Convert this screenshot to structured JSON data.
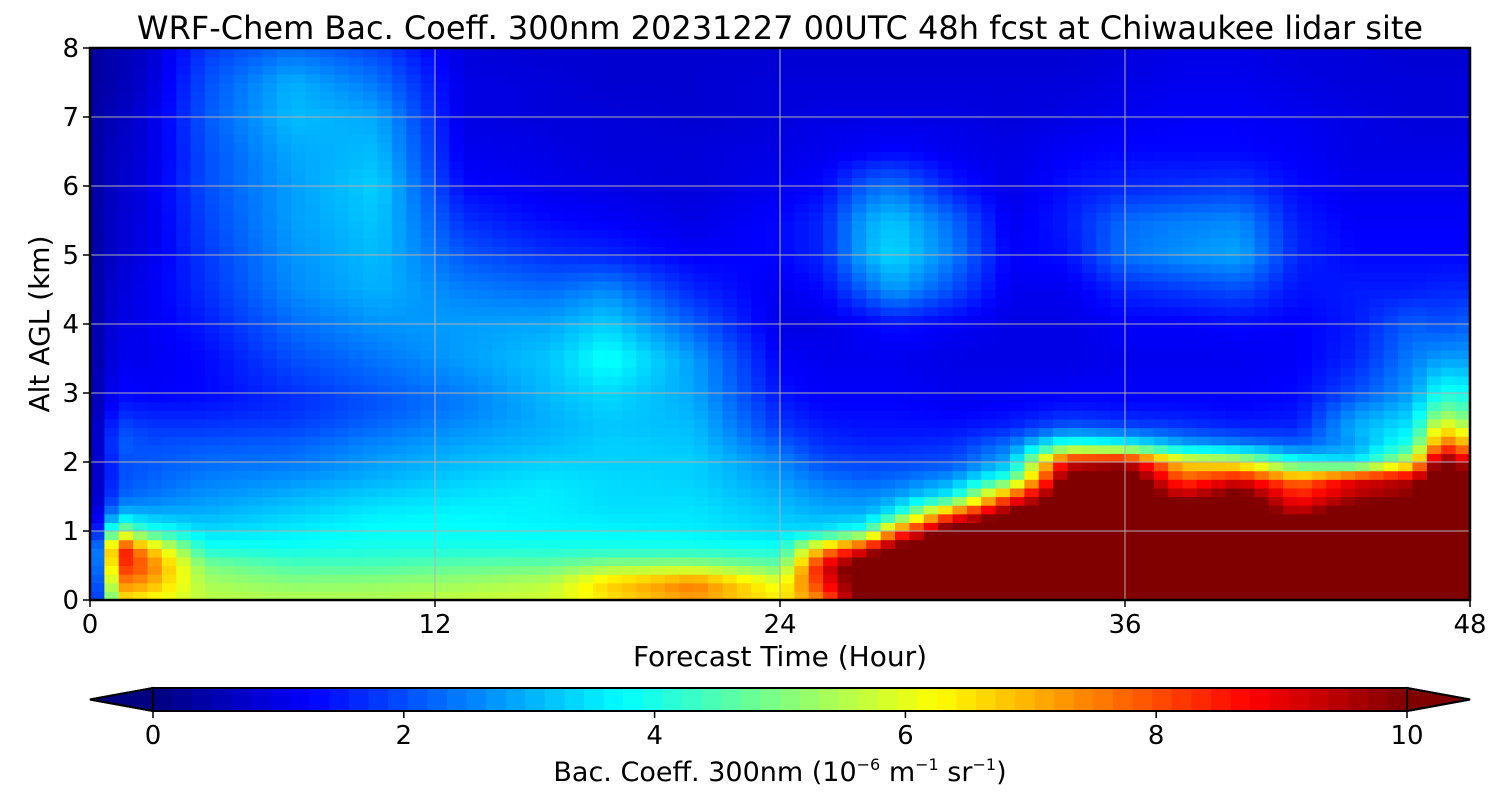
{
  "chart_data": {
    "type": "heatmap",
    "title": "WRF-Chem Bac. Coeff. 300nm  20231227 00UTC 48h fcst at Chiwaukee lidar site",
    "xlabel": "Forecast Time (Hour)",
    "ylabel": "Alt AGL (km)",
    "xlim": [
      0,
      48
    ],
    "ylim": [
      0,
      8
    ],
    "xticks": [
      0,
      12,
      24,
      36,
      48
    ],
    "yticks": [
      0,
      1,
      2,
      3,
      4,
      5,
      6,
      7,
      8
    ],
    "grid": true,
    "colormap": "jet",
    "colorbar": {
      "orientation": "horizontal",
      "label_prefix": "Bac. Coeff. 300nm  (10",
      "label_exp1": "−6",
      "label_mid1": " m",
      "label_exp2": "−1",
      "label_mid2": " sr",
      "label_exp3": "−1",
      "label_suffix": ")",
      "range": [
        0,
        10
      ],
      "ticks": [
        0,
        2,
        4,
        6,
        8,
        10
      ],
      "extend": "both"
    },
    "altitudes_km": [
      0,
      0.25,
      0.5,
      0.75,
      1,
      1.25,
      1.5,
      1.75,
      2,
      2.25,
      2.5,
      2.75,
      3,
      3.5,
      4,
      4.5,
      5,
      5.5,
      6,
      6.5,
      7,
      7.5,
      8
    ],
    "profiles": [
      {
        "hour": 0,
        "values": [
          0.3,
          0.3,
          0.3,
          0.3,
          0.3,
          0.3,
          0.3,
          0.3,
          0.3,
          0.3,
          0.3,
          0.3,
          0.3,
          0.3,
          0.3,
          0.3,
          0.3,
          0.3,
          0.3,
          0.3,
          0.3,
          0.3,
          0.3
        ]
      },
      {
        "hour": 1,
        "values": [
          6.5,
          7.5,
          8.5,
          8.9,
          5.5,
          3.2,
          2.2,
          2.0,
          2.0,
          2.2,
          2.0,
          1.6,
          1.3,
          1.1,
          1.0,
          0.9,
          0.8,
          0.8,
          0.7,
          0.7,
          0.6,
          0.5,
          0.5
        ]
      },
      {
        "hour": 2,
        "values": [
          6.2,
          7.2,
          7.8,
          7.0,
          4.2,
          3.0,
          2.4,
          2.2,
          2.1,
          2.0,
          1.8,
          1.5,
          1.2,
          1.1,
          1.1,
          1.1,
          1.0,
          1.0,
          1.0,
          0.9,
          0.9,
          0.8,
          0.7
        ]
      },
      {
        "hour": 4,
        "values": [
          5.6,
          5.4,
          5.0,
          4.0,
          3.4,
          3.0,
          2.7,
          2.5,
          2.3,
          2.1,
          1.8,
          1.5,
          1.3,
          1.3,
          1.5,
          1.7,
          1.8,
          1.9,
          2.0,
          2.0,
          2.1,
          2.0,
          1.8
        ]
      },
      {
        "hour": 7,
        "values": [
          5.5,
          5.1,
          4.5,
          3.9,
          3.6,
          3.3,
          3.0,
          2.7,
          2.4,
          2.2,
          1.9,
          1.7,
          1.7,
          2.0,
          2.3,
          2.6,
          2.7,
          2.8,
          2.8,
          2.9,
          3.1,
          3.0,
          2.3
        ]
      },
      {
        "hour": 10,
        "values": [
          5.5,
          5.2,
          4.5,
          4.0,
          3.8,
          3.6,
          3.3,
          3.0,
          2.8,
          2.6,
          2.3,
          2.1,
          2.1,
          2.4,
          2.7,
          3.0,
          3.1,
          3.2,
          3.3,
          3.1,
          2.9,
          2.4,
          1.9
        ]
      },
      {
        "hour": 13,
        "values": [
          5.7,
          5.3,
          4.7,
          4.0,
          3.8,
          3.7,
          3.5,
          3.3,
          3.1,
          2.9,
          2.7,
          2.5,
          2.5,
          2.8,
          2.8,
          2.5,
          2.1,
          1.7,
          1.3,
          1.1,
          1.0,
          1.0,
          0.9
        ]
      },
      {
        "hour": 16,
        "values": [
          5.8,
          5.6,
          4.8,
          4.0,
          3.7,
          3.6,
          3.6,
          3.5,
          3.3,
          3.1,
          3.0,
          3.0,
          3.1,
          3.2,
          2.9,
          2.3,
          1.7,
          1.3,
          1.1,
          1.0,
          0.9,
          0.9,
          0.8
        ]
      },
      {
        "hour": 18,
        "values": [
          6.5,
          6.7,
          5.2,
          4.0,
          3.7,
          3.5,
          3.4,
          3.4,
          3.3,
          3.3,
          3.2,
          3.3,
          3.4,
          3.9,
          3.3,
          2.6,
          1.6,
          1.2,
          1.0,
          0.9,
          0.9,
          0.8,
          0.8
        ]
      },
      {
        "hour": 21,
        "values": [
          7.2,
          7.6,
          5.3,
          4.0,
          3.6,
          3.5,
          3.4,
          3.3,
          3.3,
          3.2,
          3.1,
          3.0,
          2.9,
          2.8,
          2.2,
          1.6,
          1.2,
          1.0,
          0.9,
          0.9,
          0.8,
          0.8,
          0.8
        ]
      },
      {
        "hour": 24,
        "values": [
          6.4,
          6.0,
          4.8,
          3.9,
          3.4,
          3.2,
          3.0,
          2.8,
          2.6,
          2.2,
          1.8,
          1.6,
          1.4,
          1.2,
          1.0,
          1.1,
          1.3,
          1.3,
          1.1,
          1.0,
          0.9,
          0.9,
          0.8
        ]
      },
      {
        "hour": 25.5,
        "values": [
          7.5,
          8.5,
          9.0,
          7.0,
          3.5,
          3.0,
          2.7,
          2.4,
          2.0,
          1.7,
          1.5,
          1.3,
          1.2,
          1.1,
          1.0,
          1.3,
          1.6,
          1.6,
          1.3,
          1.1,
          1.0,
          0.9,
          0.8
        ]
      },
      {
        "hour": 27,
        "values": [
          11,
          11,
          11,
          9.0,
          4.2,
          3.0,
          2.6,
          2.2,
          1.9,
          1.6,
          1.4,
          1.3,
          1.2,
          1.1,
          1.2,
          2.2,
          3.0,
          2.9,
          2.2,
          1.2,
          1.0,
          0.9,
          0.8
        ]
      },
      {
        "hour": 28,
        "values": [
          11,
          11,
          11,
          10.5,
          7.5,
          3.8,
          2.8,
          2.3,
          1.9,
          1.6,
          1.4,
          1.3,
          1.2,
          1.1,
          1.4,
          2.8,
          3.4,
          3.2,
          2.4,
          1.3,
          1.0,
          0.9,
          0.8
        ]
      },
      {
        "hour": 30,
        "values": [
          11,
          11,
          11,
          11,
          11,
          8.0,
          3.8,
          2.8,
          2.0,
          1.7,
          1.4,
          1.2,
          1.1,
          1.0,
          1.2,
          2.0,
          2.5,
          2.3,
          1.5,
          1.1,
          1.0,
          0.9,
          0.8
        ]
      },
      {
        "hour": 32,
        "values": [
          11,
          11,
          11,
          11,
          11,
          10.5,
          8.0,
          4.5,
          3.0,
          2.4,
          1.6,
          1.3,
          1.1,
          1.0,
          1.0,
          1.1,
          1.2,
          1.1,
          1.0,
          1.0,
          0.9,
          0.9,
          0.8
        ]
      },
      {
        "hour": 34,
        "values": [
          11,
          11,
          11,
          11,
          11,
          11,
          11,
          10.5,
          9.0,
          4.5,
          2.2,
          1.5,
          1.2,
          1.0,
          1.0,
          1.1,
          1.4,
          1.5,
          1.4,
          1.2,
          1.0,
          0.9,
          0.8
        ]
      },
      {
        "hour": 36,
        "values": [
          11,
          11,
          11,
          11,
          11,
          11,
          11,
          11,
          9.5,
          4.0,
          2.0,
          1.4,
          1.2,
          1.1,
          1.2,
          1.6,
          2.4,
          2.3,
          1.6,
          1.3,
          1.1,
          1.0,
          0.9
        ]
      },
      {
        "hour": 38,
        "values": [
          11,
          11,
          11,
          11,
          11,
          11,
          9.5,
          8.0,
          6.5,
          3.0,
          1.8,
          1.4,
          1.2,
          1.1,
          1.2,
          1.8,
          2.7,
          2.5,
          1.7,
          1.3,
          1.2,
          1.1,
          1.0
        ]
      },
      {
        "hour": 40,
        "values": [
          11,
          11,
          11,
          11,
          11,
          11,
          10.5,
          9.0,
          6.0,
          2.6,
          1.6,
          1.3,
          1.2,
          1.1,
          1.3,
          2.0,
          2.9,
          2.6,
          1.8,
          1.3,
          1.2,
          1.1,
          1.0
        ]
      },
      {
        "hour": 42,
        "values": [
          11,
          11,
          11,
          11,
          11,
          9.5,
          8.5,
          7.5,
          4.0,
          2.2,
          1.6,
          1.4,
          1.3,
          1.2,
          1.2,
          1.4,
          1.6,
          1.5,
          1.3,
          1.2,
          1.1,
          1.0,
          0.9
        ]
      },
      {
        "hour": 44,
        "values": [
          11,
          11,
          11,
          11,
          11,
          11,
          9.5,
          9.0,
          3.5,
          2.8,
          3.0,
          2.6,
          2.0,
          1.6,
          1.5,
          1.5,
          1.3,
          1.2,
          1.1,
          1.0,
          1.0,
          0.9,
          0.9
        ]
      },
      {
        "hour": 46,
        "values": [
          11,
          11,
          11,
          11,
          11,
          11,
          10.0,
          9.5,
          6.0,
          4.2,
          3.6,
          3.2,
          2.8,
          2.5,
          2.2,
          1.5,
          1.3,
          1.2,
          1.1,
          1.0,
          0.9,
          0.9,
          0.8
        ]
      },
      {
        "hour": 47,
        "values": [
          11,
          11,
          11,
          11,
          11,
          11,
          11,
          11,
          10.5,
          8.0,
          6.5,
          5.0,
          4.0,
          2.8,
          2.0,
          1.6,
          1.3,
          1.2,
          1.1,
          1.0,
          0.9,
          0.9,
          0.8
        ]
      },
      {
        "hour": 48,
        "values": [
          11,
          11,
          11,
          11,
          11,
          11,
          11,
          10.5,
          9.0,
          7.0,
          5.5,
          4.5,
          3.8,
          2.8,
          2.2,
          1.6,
          1.3,
          1.2,
          1.1,
          1.0,
          0.9,
          0.9,
          0.8
        ]
      }
    ]
  }
}
